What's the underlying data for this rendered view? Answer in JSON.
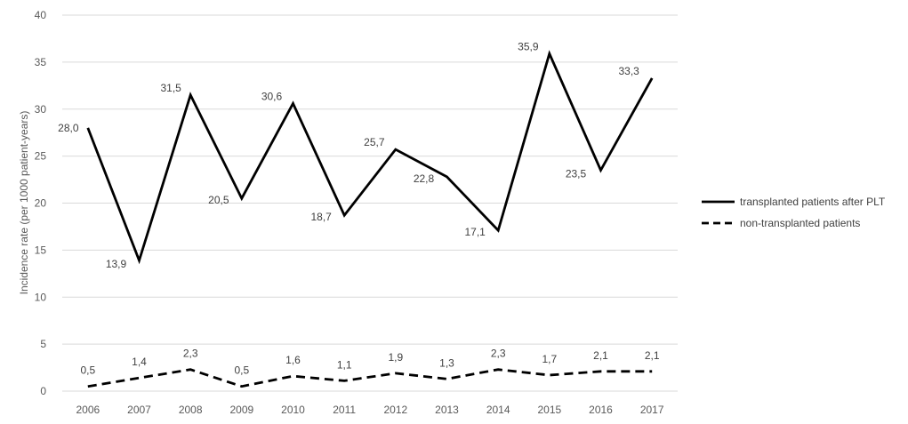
{
  "chart_data": {
    "type": "line",
    "title": "",
    "xlabel": "",
    "ylabel": "Incidence rate (per 1000 patient-years)",
    "ylim": [
      0,
      40
    ],
    "yticks": [
      0,
      5,
      10,
      15,
      20,
      25,
      30,
      35,
      40
    ],
    "grid": true,
    "legend": "right",
    "categories": [
      "2006",
      "2007",
      "2008",
      "2009",
      "2010",
      "2011",
      "2012",
      "2013",
      "2014",
      "2015",
      "2016",
      "2017"
    ],
    "series": [
      {
        "name": "transplanted patients after PLT",
        "style": "solid",
        "color": "#000000",
        "values": [
          28.0,
          13.9,
          31.5,
          20.5,
          30.6,
          18.7,
          25.7,
          22.8,
          17.1,
          35.9,
          23.5,
          33.3
        ],
        "labels": [
          "28,0",
          "13,9",
          "31,5",
          "20,5",
          "30,6",
          "18,7",
          "25,7",
          "22,8",
          "17,1",
          "35,9",
          "23,5",
          "33,3"
        ]
      },
      {
        "name": "non-transplanted patients",
        "style": "dashed",
        "color": "#000000",
        "values": [
          0.5,
          1.4,
          2.3,
          0.5,
          1.6,
          1.1,
          1.9,
          1.3,
          2.3,
          1.7,
          2.1,
          2.1
        ],
        "labels": [
          "0,5",
          "1,4",
          "2,3",
          "0,5",
          "1,6",
          "1,1",
          "1,9",
          "1,3",
          "2,3",
          "1,7",
          "2,1",
          "2,1"
        ]
      }
    ]
  }
}
